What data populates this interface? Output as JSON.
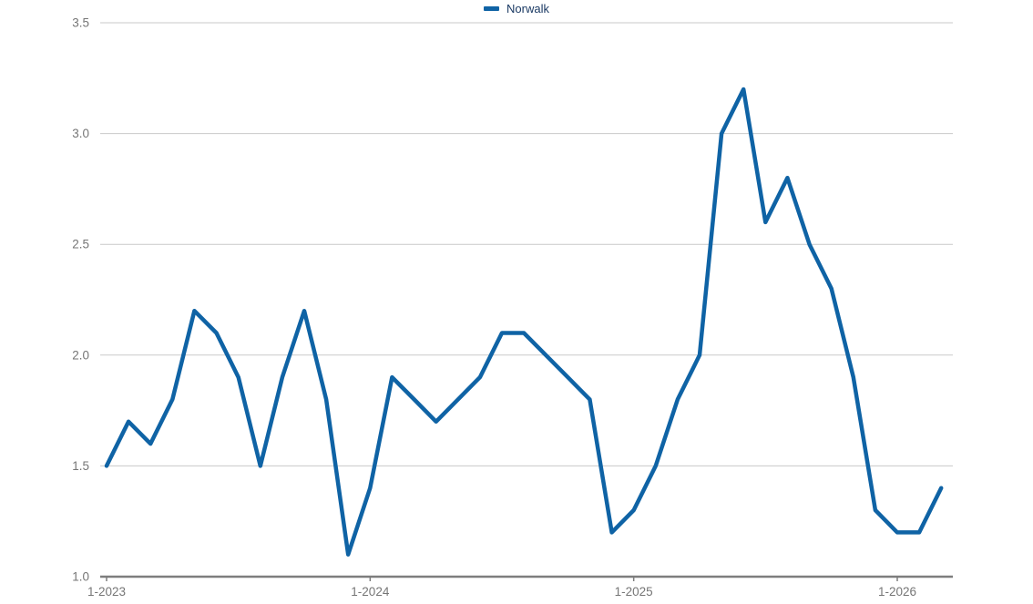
{
  "chart": {
    "legend": {
      "items": [
        {
          "label": "Norwalk",
          "color": "#0F63A5"
        }
      ]
    },
    "colors": {
      "line": "#0F63A5",
      "legend_text": "#1B3A64",
      "axis_text": "#767676",
      "gridline": "#C9C9C9",
      "axis_line": "#7D7D7D",
      "background": "#FFFFFF"
    },
    "chart_data": {
      "type": "line",
      "title": "",
      "xlabel": "",
      "ylabel": "",
      "grid": "horizontal",
      "legend_position": "top-center",
      "x_interval": "month",
      "x": [
        "1-2023",
        "2-2023",
        "3-2023",
        "4-2023",
        "5-2023",
        "6-2023",
        "7-2023",
        "8-2023",
        "9-2023",
        "10-2023",
        "11-2023",
        "12-2023",
        "1-2024",
        "2-2024",
        "3-2024",
        "4-2024",
        "5-2024",
        "6-2024",
        "7-2024",
        "8-2024",
        "9-2024",
        "10-2024",
        "11-2024",
        "12-2024",
        "1-2025",
        "2-2025",
        "3-2025",
        "4-2025",
        "5-2025",
        "6-2025",
        "7-2025",
        "8-2025",
        "9-2025",
        "10-2025",
        "11-2025",
        "12-2025",
        "1-2026",
        "2-2026",
        "3-2026"
      ],
      "series": [
        {
          "name": "Norwalk",
          "color": "#0F63A5",
          "values": [
            1.5,
            1.7,
            1.6,
            1.8,
            2.2,
            2.1,
            1.9,
            1.5,
            1.9,
            2.2,
            1.8,
            1.1,
            1.4,
            1.9,
            1.8,
            1.7,
            1.8,
            1.9,
            2.1,
            2.1,
            2.0,
            1.9,
            1.8,
            1.2,
            1.3,
            1.5,
            1.8,
            2.0,
            3.0,
            3.2,
            2.6,
            2.8,
            2.5,
            2.3,
            1.9,
            1.3,
            1.2,
            1.2,
            1.4
          ]
        }
      ],
      "y_axis": {
        "min": 1.0,
        "max": 3.5,
        "step": 0.5,
        "tick_labels": [
          "1.0",
          "1.5",
          "2.0",
          "2.5",
          "3.0",
          "3.5"
        ]
      },
      "x_axis": {
        "tick_labels": [
          "1-2023",
          "1-2024",
          "1-2025",
          "1-2026"
        ],
        "tick_month_indices": [
          0,
          12,
          24,
          36
        ]
      },
      "ylim": [
        1.0,
        3.5
      ]
    }
  }
}
